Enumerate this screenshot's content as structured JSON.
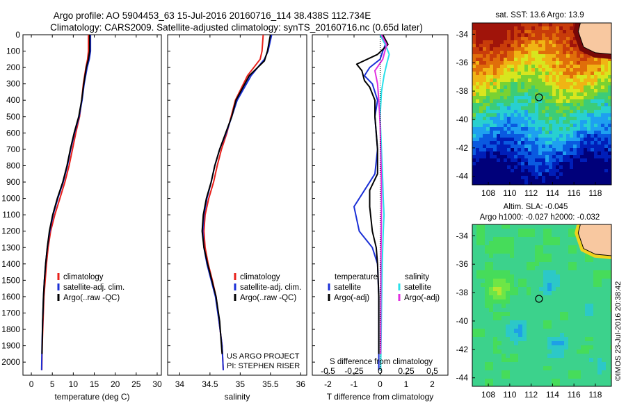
{
  "figure": {
    "title_line1": "Argo profile: AO 5904453_63 15-Jul-2016 20160716_114 38.438S 112.734E",
    "title_line2": "Climatology: CARS2009. Satellite-adjusted climatology: synTS_20160716.nc (0.65d later)",
    "credit_text": "US ARGO PROJECT",
    "pi_text": "PI: STEPHEN RISER",
    "imos_stamp": "©IMOS 23-Jul-2016 20:38:42"
  },
  "colors": {
    "climatology": "#e8201a",
    "satellite": "#1a2fd6",
    "argo": "#000000",
    "satellite_S": "#29e0ea",
    "argo_S": "#e030e0"
  },
  "chart_data": [
    {
      "type": "line",
      "id": "temperature",
      "xlabel": "temperature (deg C)",
      "ylabel": "",
      "xlim": [
        -2,
        31
      ],
      "ylim": [
        2080,
        0
      ],
      "xticks": [
        0,
        5,
        10,
        15,
        20,
        25,
        30
      ],
      "yticks": [
        0,
        100,
        200,
        300,
        400,
        500,
        600,
        700,
        800,
        900,
        1000,
        1100,
        1200,
        1300,
        1400,
        1500,
        1600,
        1700,
        1800,
        1900,
        2000
      ],
      "legend": [
        "climatology",
        "satellite-adj. clim.",
        "Argo(..raw -QC)"
      ],
      "legend_position": "bottom-center",
      "series": [
        {
          "name": "climatology",
          "color": "climatology",
          "x": [
            13.6,
            13.6,
            13.4,
            13.0,
            12.4,
            12.0,
            11.5,
            10.6,
            9.8,
            9.0,
            8.0,
            6.8,
            5.6,
            4.6,
            4.0,
            3.6,
            3.3,
            3.0,
            2.8,
            2.6,
            2.5
          ],
          "y": [
            0,
            100,
            150,
            200,
            300,
            400,
            500,
            600,
            700,
            800,
            900,
            1000,
            1100,
            1200,
            1300,
            1400,
            1500,
            1600,
            1750,
            1900,
            2050
          ]
        },
        {
          "name": "satellite-adj. clim.",
          "color": "satellite",
          "x": [
            14.1,
            14.1,
            13.8,
            13.3,
            12.6,
            12.1,
            11.4,
            10.3,
            9.4,
            8.6,
            7.6,
            6.3,
            5.2,
            4.4,
            3.8,
            3.4,
            3.1,
            2.9,
            2.7,
            2.55,
            2.45
          ],
          "y": [
            0,
            100,
            150,
            200,
            300,
            400,
            500,
            600,
            700,
            800,
            900,
            1000,
            1100,
            1200,
            1300,
            1400,
            1500,
            1600,
            1750,
            1900,
            2050
          ]
        },
        {
          "name": "Argo(..raw -QC)",
          "color": "argo",
          "x": [
            13.9,
            13.9,
            13.6,
            13.1,
            12.5,
            12.0,
            11.3,
            10.2,
            9.3,
            8.5,
            7.5,
            6.2,
            5.1,
            4.3,
            3.8,
            3.4,
            3.1,
            2.9,
            2.7,
            2.55
          ],
          "y": [
            0,
            100,
            150,
            200,
            300,
            400,
            500,
            600,
            700,
            800,
            900,
            1000,
            1100,
            1200,
            1300,
            1400,
            1500,
            1600,
            1750,
            1950
          ]
        }
      ]
    },
    {
      "type": "line",
      "id": "salinity",
      "xlabel": "salinity",
      "ylabel": "",
      "xlim": [
        33.8,
        36.1
      ],
      "ylim": [
        2080,
        0
      ],
      "xticks": [
        34,
        34.5,
        35,
        35.5,
        36
      ],
      "legend": [
        "climatology",
        "satellite-adj. clim.",
        "Argo(..raw -QC)"
      ],
      "legend_position": "bottom-center",
      "series": [
        {
          "name": "climatology",
          "color": "climatology",
          "x": [
            35.38,
            35.36,
            35.33,
            35.12,
            34.92,
            34.85,
            34.78,
            34.69,
            34.62,
            34.56,
            34.48,
            34.42,
            34.4,
            34.42,
            34.47,
            34.54,
            34.6,
            34.65,
            34.7,
            34.72
          ],
          "y": [
            0,
            100,
            150,
            250,
            400,
            500,
            600,
            700,
            800,
            900,
            1000,
            1100,
            1200,
            1300,
            1400,
            1500,
            1600,
            1750,
            1900,
            2050
          ]
        },
        {
          "name": "satellite-adj. clim.",
          "color": "satellite",
          "x": [
            35.52,
            35.46,
            35.4,
            35.18,
            34.95,
            34.86,
            34.77,
            34.66,
            34.58,
            34.52,
            34.45,
            34.4,
            34.38,
            34.4,
            34.45,
            34.52,
            34.59,
            34.65,
            34.7,
            34.72
          ],
          "y": [
            0,
            100,
            150,
            250,
            400,
            500,
            600,
            700,
            800,
            900,
            1000,
            1100,
            1200,
            1300,
            1400,
            1500,
            1600,
            1750,
            1900,
            2050
          ]
        },
        {
          "name": "Argo(..raw -QC)",
          "color": "argo",
          "x": [
            35.5,
            35.45,
            35.4,
            35.15,
            34.93,
            34.86,
            34.76,
            34.66,
            34.58,
            34.52,
            34.44,
            34.39,
            34.37,
            34.4,
            34.46,
            34.53,
            34.6,
            34.66,
            34.7
          ],
          "y": [
            0,
            100,
            160,
            250,
            400,
            500,
            600,
            700,
            800,
            900,
            1000,
            1100,
            1200,
            1300,
            1400,
            1500,
            1600,
            1750,
            1950
          ]
        }
      ]
    },
    {
      "type": "line",
      "id": "difference",
      "xlabel": "T difference from climatology",
      "top_label": "S difference from climatology",
      "xlim": [
        -2.6,
        2.6
      ],
      "ylim": [
        2080,
        0
      ],
      "xticks": [
        -2,
        -1,
        0,
        1,
        2
      ],
      "s_ticks": [
        -0.5,
        -0.25,
        0,
        0.25,
        0.5
      ],
      "s_tick_labels": [
        "-0.5",
        "-0.25",
        "0",
        "0.25",
        "0.5"
      ],
      "legend_temperature_title": "temperature",
      "legend_salinity_title": "salinity",
      "legend_position": "bottom-center",
      "series": [
        {
          "name": "satellite",
          "group": "temperature",
          "color": "satellite",
          "x": [
            0.0,
            0.2,
            0.1,
            0.0,
            -0.4,
            -0.6,
            -0.3,
            -0.1,
            -0.2,
            -0.1,
            -0.2,
            -0.6,
            -1.0,
            -0.8,
            -0.3,
            -0.1,
            -0.05,
            -0.05,
            -0.05
          ],
          "y": [
            0,
            60,
            100,
            150,
            200,
            250,
            300,
            400,
            500,
            700,
            850,
            950,
            1050,
            1200,
            1300,
            1400,
            1600,
            1800,
            2050
          ]
        },
        {
          "name": "Argo(-adj)",
          "group": "temperature",
          "color": "argo",
          "x": [
            0.1,
            0.3,
            -0.1,
            -0.9,
            -0.7,
            -0.6,
            -0.4,
            -0.2,
            -0.2,
            -0.1,
            -0.1,
            -0.4,
            -0.4,
            -0.3,
            -0.15,
            -0.1,
            -0.05,
            -0.05
          ],
          "y": [
            0,
            60,
            120,
            180,
            220,
            280,
            320,
            400,
            500,
            700,
            850,
            950,
            1050,
            1200,
            1300,
            1400,
            1600,
            1950
          ]
        },
        {
          "name": "satellite",
          "group": "salinity",
          "color": "satellite_S",
          "x": [
            0.0,
            0.2,
            0.35,
            0.25,
            0.15,
            0.05,
            0.0,
            0.05,
            0.1,
            0.12,
            0.15,
            0.12,
            0.08,
            0.05,
            0.02
          ],
          "y": [
            0,
            60,
            120,
            180,
            250,
            350,
            500,
            700,
            900,
            1000,
            1100,
            1200,
            1400,
            1700,
            2050
          ]
        },
        {
          "name": "Argo(-adj)",
          "group": "salinity",
          "color": "argo_S",
          "x": [
            0.05,
            0.25,
            0.1,
            -0.2,
            -0.1,
            -0.05,
            0.0,
            0.02,
            0.05,
            0.05,
            0.03,
            0.02
          ],
          "y": [
            0,
            60,
            150,
            220,
            300,
            400,
            550,
            700,
            900,
            1100,
            1400,
            1950
          ]
        }
      ]
    },
    {
      "type": "heatmap",
      "id": "sst_map",
      "title": "sat. SST: 13.6  Argo: 13.9",
      "xlim": [
        106.5,
        119.5
      ],
      "ylim": [
        -44.6,
        -33.2
      ],
      "xticks": [
        108,
        110,
        112,
        114,
        116,
        118
      ],
      "yticks": [
        -34,
        -36,
        -38,
        -40,
        -42,
        -44
      ],
      "marker": {
        "lon": 112.734,
        "lat": -38.438
      }
    },
    {
      "type": "heatmap",
      "id": "sla_map",
      "title": "Altim. SLA: -0.045",
      "subtitle": "Argo h1000: -0.027  h2000: -0.032",
      "xlim": [
        106.5,
        119.5
      ],
      "ylim": [
        -44.6,
        -33.2
      ],
      "xticks": [
        108,
        110,
        112,
        114,
        116,
        118
      ],
      "yticks": [
        -34,
        -36,
        -38,
        -40,
        -42,
        -44
      ],
      "marker": {
        "lon": 112.734,
        "lat": -38.438
      }
    }
  ]
}
